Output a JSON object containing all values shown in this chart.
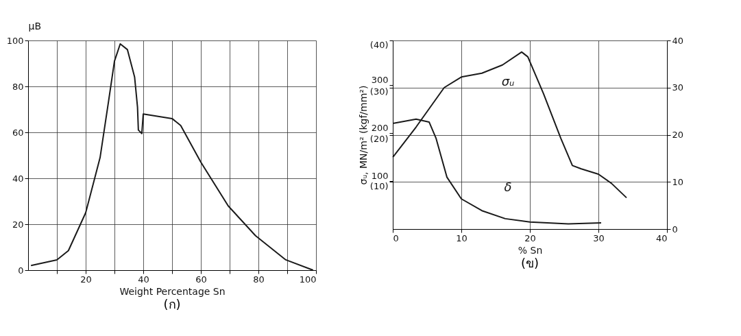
{
  "chart_data": [
    {
      "type": "line",
      "title": "(ก)",
      "xlabel": "Weight Percentage Sn",
      "ylabel": "μB",
      "x": [
        1,
        10,
        14,
        20,
        25,
        28,
        30,
        32,
        34.5,
        37,
        38,
        38.3,
        39.5,
        40,
        50,
        53,
        60,
        69.5,
        79,
        89.5,
        99
      ],
      "series": [
        {
          "color": "#1a1a1a",
          "values": [
            2,
            4.5,
            8.5,
            25,
            49,
            74,
            91,
            98.5,
            96,
            84,
            71,
            61,
            59.5,
            68,
            66,
            63,
            47,
            28,
            15,
            4.5,
            0
          ]
        }
      ],
      "xlim": [
        0,
        100
      ],
      "ylim": [
        0,
        100
      ],
      "xticks": [
        {
          "value": 10,
          "label": null
        },
        20,
        {
          "value": 30,
          "label": null
        },
        40,
        {
          "value": 50,
          "label": null
        },
        60,
        {
          "value": 70,
          "label": null
        },
        80,
        {
          "value": 90,
          "label": null
        },
        100
      ],
      "yticks": [
        0,
        20,
        40,
        60,
        80,
        100
      ],
      "grid": true
    },
    {
      "type": "line",
      "title": "(ข)",
      "xlabel": "% Sn",
      "ylabel": "σᵤ, MN/m² (kgf/mm²)",
      "series": [
        {
          "color": "#1a1a1a",
          "x": [
            0,
            3.4,
            7.5,
            10,
            13,
            16,
            18.8,
            19.7,
            22,
            24.5,
            26.2,
            27.5,
            30,
            31.9,
            34.1
          ],
          "values": [
            149,
            212,
            294,
            316,
            324,
            341,
            368,
            358,
            281,
            189,
            132,
            125,
            114,
            95,
            65
          ]
        },
        {
          "color": "#1a1a1a",
          "axis": "y2",
          "x": [
            0,
            3.4,
            5.3,
            6.3,
            7.9,
            10,
            13,
            16.4,
            20,
            25.6,
            30.4
          ],
          "values": [
            22.4,
            23.3,
            22.7,
            19.3,
            11,
            6.4,
            3.9,
            2.2,
            1.5,
            1.1,
            1.3
          ]
        }
      ],
      "annotations": [
        "σᵤ",
        "δ"
      ],
      "xlim": [
        0,
        40
      ],
      "ylim": [
        0,
        392
      ],
      "y2lim": [
        0,
        40
      ],
      "y3lim": [
        0,
        40
      ],
      "xticks": [
        0,
        10,
        20,
        30,
        40
      ],
      "yticks": [
        100,
        200,
        300
      ],
      "y3ticks": [
        {
          "value": 10,
          "label": "(10)"
        },
        {
          "value": 20,
          "label": "(20)"
        },
        {
          "value": 30,
          "label": "(30)"
        },
        {
          "value": 40,
          "label": "(40)"
        }
      ],
      "y2ticks": [
        0,
        10,
        20,
        30,
        40
      ],
      "grid": true
    }
  ]
}
